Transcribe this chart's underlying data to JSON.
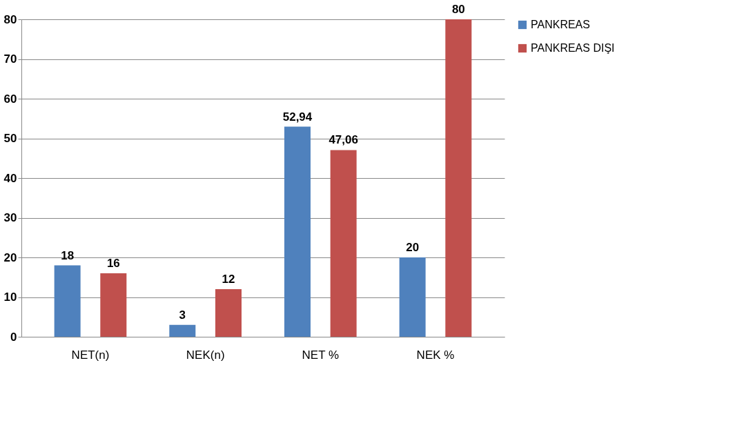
{
  "chart_data": {
    "type": "bar",
    "categories": [
      "NET(n)",
      "NEK(n)",
      "NET %",
      "NEK %"
    ],
    "series": [
      {
        "name": "PANKREAS",
        "color": "#4f81bd",
        "values": [
          18,
          3,
          52.94,
          20
        ],
        "value_labels": [
          "18",
          "3",
          "52,94",
          "20"
        ]
      },
      {
        "name": "PANKREAS DIŞI",
        "color": "#c0504d",
        "values": [
          16,
          12,
          47.06,
          80
        ],
        "value_labels": [
          "16",
          "12",
          "47,06",
          "80"
        ]
      }
    ],
    "ylim": [
      0,
      80
    ],
    "yticks": [
      0,
      10,
      20,
      30,
      40,
      50,
      60,
      70,
      80
    ],
    "grid": "y",
    "legend": "right"
  }
}
